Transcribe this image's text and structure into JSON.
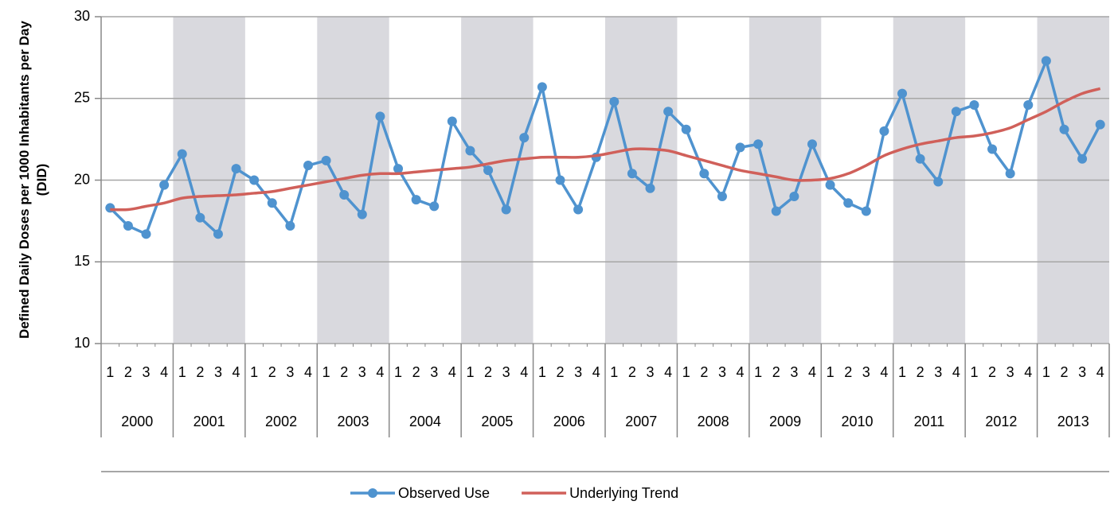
{
  "chart_data": {
    "type": "line",
    "y_label": "Defined Daily Doses per 1000 Inhabitants per Day (DID)",
    "categories": [
      "1",
      "2",
      "3",
      "4",
      "1",
      "2",
      "3",
      "4",
      "1",
      "2",
      "3",
      "4",
      "1",
      "2",
      "3",
      "4",
      "1",
      "2",
      "3",
      "4",
      "1",
      "2",
      "3",
      "4",
      "1",
      "2",
      "3",
      "4",
      "1",
      "2",
      "3",
      "4",
      "1",
      "2",
      "3",
      "4",
      "1",
      "2",
      "3",
      "4",
      "1",
      "2",
      "3",
      "4",
      "1",
      "2",
      "3",
      "4",
      "1",
      "2",
      "3",
      "4",
      "1",
      "2",
      "3",
      "4"
    ],
    "year_labels": [
      "2000",
      "2001",
      "2002",
      "2003",
      "2004",
      "2005",
      "2006",
      "2007",
      "2008",
      "2009",
      "2010",
      "2011",
      "2012",
      "2013"
    ],
    "series": [
      {
        "name": "Observed Use",
        "color": "#4f93cf",
        "markers": true,
        "values": [
          18.3,
          17.2,
          16.7,
          19.7,
          21.6,
          17.7,
          16.7,
          20.7,
          20.0,
          18.6,
          17.2,
          20.9,
          21.2,
          19.1,
          17.9,
          23.9,
          20.7,
          18.8,
          18.4,
          23.6,
          21.8,
          20.6,
          18.2,
          22.6,
          25.7,
          20.0,
          18.2,
          21.4,
          24.8,
          20.4,
          19.5,
          24.2,
          23.1,
          20.4,
          19.0,
          22.0,
          22.2,
          18.1,
          19.0,
          22.2,
          19.7,
          18.6,
          18.1,
          23.0,
          25.3,
          21.3,
          19.9,
          24.2,
          24.6,
          21.9,
          20.4,
          24.6,
          27.3,
          23.1,
          21.3,
          23.4
        ]
      },
      {
        "name": "Underlying Trend",
        "color": "#d0605a",
        "markers": false,
        "smooth": true,
        "values": [
          18.2,
          18.2,
          18.4,
          18.6,
          18.9,
          19.0,
          19.05,
          19.1,
          19.2,
          19.3,
          19.5,
          19.7,
          19.9,
          20.1,
          20.3,
          20.4,
          20.4,
          20.5,
          20.6,
          20.7,
          20.8,
          21.0,
          21.2,
          21.3,
          21.4,
          21.4,
          21.4,
          21.5,
          21.7,
          21.9,
          21.9,
          21.8,
          21.5,
          21.2,
          20.9,
          20.6,
          20.4,
          20.2,
          20.0,
          20.0,
          20.1,
          20.4,
          20.9,
          21.5,
          21.9,
          22.2,
          22.4,
          22.6,
          22.7,
          22.9,
          23.2,
          23.7,
          24.2,
          24.8,
          25.3,
          25.6
        ]
      }
    ],
    "ylim": [
      10,
      30
    ],
    "yticks": [
      10,
      15,
      20,
      25,
      30
    ],
    "grid": true,
    "band_color": "#d9d9de",
    "legend": "bottom"
  }
}
